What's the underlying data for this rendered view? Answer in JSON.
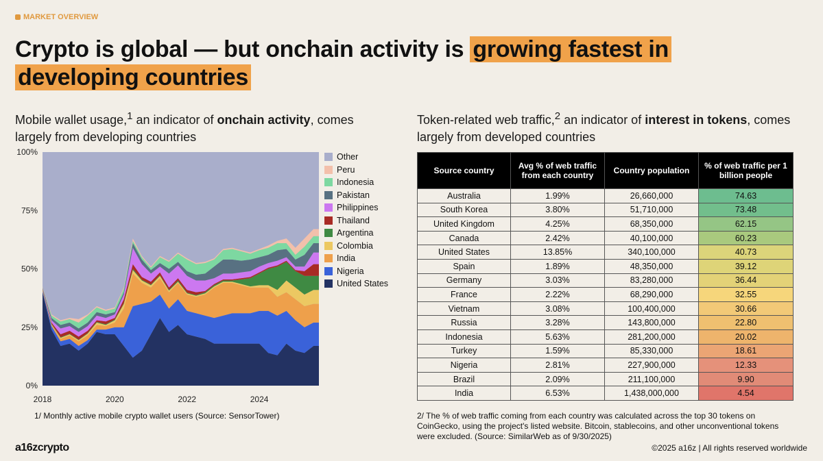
{
  "tag": "MARKET OVERVIEW",
  "title": {
    "part1": "Crypto is global — but onchain activity is ",
    "highlight1": "growing fastest in",
    "highlight2": "developing countries"
  },
  "left_subtitle": {
    "pre": "Mobile wallet usage,",
    "sup": "1",
    "mid": " an indicator of ",
    "bold": "onchain activity",
    "post": ", comes largely from developing countries"
  },
  "right_subtitle": {
    "pre": "Token-related web traffic,",
    "sup": "2",
    "mid": " an indicator of ",
    "bold": "interest in tokens",
    "post": ", comes largely from developed countries"
  },
  "chart_data": {
    "type": "area",
    "stacked": true,
    "percent_stacked": true,
    "ylim": [
      0,
      100
    ],
    "yticks": [
      "0%",
      "25%",
      "50%",
      "75%",
      "100%"
    ],
    "xticks": [
      "2018",
      "2020",
      "2022",
      "2024"
    ],
    "legend_position": "right",
    "x": [
      2018.0,
      2018.25,
      2018.5,
      2018.75,
      2019.0,
      2019.25,
      2019.5,
      2019.75,
      2020.0,
      2020.25,
      2020.5,
      2020.75,
      2021.0,
      2021.25,
      2021.5,
      2021.75,
      2022.0,
      2022.25,
      2022.5,
      2022.75,
      2023.0,
      2023.25,
      2023.5,
      2023.75,
      2024.0,
      2024.25,
      2024.5,
      2024.75,
      2025.0,
      2025.25,
      2025.5,
      2025.65
    ],
    "series": [
      {
        "name": "United States",
        "color": "#233262",
        "values": [
          40,
          24,
          17,
          18,
          15,
          18,
          23,
          22,
          22,
          17,
          12,
          15,
          22,
          29,
          23,
          26,
          22,
          21,
          20,
          18,
          18,
          18,
          18,
          18,
          18,
          14,
          13,
          18,
          15,
          14,
          17,
          17
        ]
      },
      {
        "name": "Nigeria",
        "color": "#3a62d9",
        "values": [
          0.5,
          1.5,
          2,
          2,
          2,
          1.5,
          1,
          2,
          3,
          8,
          22,
          20,
          14,
          10,
          10,
          11,
          10,
          10,
          10,
          11,
          12,
          13,
          13,
          13,
          14,
          18,
          17,
          14,
          13,
          11,
          10,
          10
        ]
      },
      {
        "name": "India",
        "color": "#eea04b",
        "values": [
          0.5,
          0.5,
          1,
          1.5,
          2,
          2,
          2,
          1.5,
          2,
          8,
          14,
          9,
          6,
          7,
          7,
          7,
          7,
          7,
          9,
          13,
          14,
          13,
          12,
          11,
          10,
          10,
          8,
          8,
          9,
          9,
          8,
          8
        ]
      },
      {
        "name": "Colombia",
        "color": "#ecc862",
        "values": [
          0.2,
          0.3,
          0.5,
          0.5,
          0.5,
          0.8,
          1,
          0.5,
          1,
          2,
          1.5,
          1,
          1,
          1,
          0.7,
          0.5,
          0.5,
          0.5,
          0.5,
          0.5,
          0.5,
          0.5,
          0.5,
          0.5,
          1,
          1,
          3,
          5,
          5,
          5,
          6,
          6
        ]
      },
      {
        "name": "Argentina",
        "color": "#3f8a43",
        "values": [
          0.2,
          0.2,
          0.2,
          0.2,
          0.2,
          0.2,
          0.3,
          0.3,
          0.3,
          0.3,
          0.5,
          0.3,
          0.3,
          0.3,
          0.3,
          0.5,
          0.3,
          0.3,
          0.5,
          0.5,
          0.5,
          0.5,
          2,
          3.5,
          5,
          7,
          10,
          8,
          7,
          8,
          6,
          6
        ]
      },
      {
        "name": "Thailand",
        "color": "#a82b24",
        "values": [
          0.2,
          0.5,
          1.3,
          1.3,
          1.3,
          1,
          0.7,
          1.2,
          0.7,
          1.7,
          2,
          1.2,
          1.2,
          1.2,
          1,
          1,
          1.2,
          1.2,
          0.5,
          0.5,
          0.5,
          0.5,
          0.5,
          0.5,
          0.5,
          0.5,
          0.5,
          0.5,
          0.5,
          2,
          5,
          5
        ]
      },
      {
        "name": "Philippines",
        "color": "#cc78f0",
        "values": [
          0.2,
          1,
          2.5,
          2,
          2,
          2,
          2,
          1.5,
          1.5,
          2,
          7,
          5.5,
          3.5,
          2.5,
          6,
          5.5,
          6,
          5,
          4.5,
          2.5,
          2.5,
          2.5,
          2.5,
          2.5,
          2.5,
          2,
          2,
          1.5,
          1.5,
          2,
          5,
          5
        ]
      },
      {
        "name": "Pakistan",
        "color": "#587182",
        "values": [
          0.2,
          1,
          1.5,
          1.5,
          1.5,
          1.5,
          1.5,
          1.5,
          1,
          1,
          2,
          2,
          1.5,
          1.5,
          2,
          1.5,
          2,
          2.5,
          3,
          5,
          6,
          6,
          5,
          5,
          4,
          3.5,
          4.5,
          3.5,
          3,
          5,
          4,
          4
        ]
      },
      {
        "name": "Indonesia",
        "color": "#7dd8a1",
        "values": [
          0.2,
          1,
          1.5,
          1.5,
          2.5,
          3,
          2,
          1.5,
          1.5,
          1.5,
          1,
          1,
          1,
          2.5,
          3,
          3.5,
          5,
          4.5,
          4.5,
          3,
          4,
          4.5,
          4,
          2.5,
          3,
          3,
          3,
          2.5,
          2,
          3.5,
          3,
          3
        ]
      },
      {
        "name": "Peru",
        "color": "#f3c0ab",
        "values": [
          0.2,
          0.5,
          0.5,
          0.5,
          1.5,
          0.5,
          0.5,
          0.5,
          0.5,
          0.5,
          1,
          0.5,
          0.5,
          0.5,
          0.5,
          0.5,
          0.5,
          0.5,
          0.5,
          0.5,
          0.5,
          0.5,
          0.5,
          0.5,
          0.5,
          1,
          1,
          2,
          3,
          3.5,
          3,
          3
        ]
      }
    ],
    "other": {
      "name": "Other",
      "color": "#a9aecb"
    }
  },
  "table": {
    "headers": [
      "Source country",
      "Avg % of web traffic from each country",
      "Country population",
      "% of web traffic per 1 billion people"
    ],
    "rows": [
      {
        "country": "Australia",
        "share": "1.99%",
        "population": "26,660,000",
        "per_billion": "74.63",
        "color": "#6dbd8f"
      },
      {
        "country": "South Korea",
        "share": "3.80%",
        "population": "51,710,000",
        "per_billion": "73.48",
        "color": "#72be8c"
      },
      {
        "country": "United Kingdom",
        "share": "4.25%",
        "population": "68,350,000",
        "per_billion": "62.15",
        "color": "#95c585"
      },
      {
        "country": "Canada",
        "share": "2.42%",
        "population": "40,100,000",
        "per_billion": "60.23",
        "color": "#a9c97e"
      },
      {
        "country": "United States",
        "share": "13.85%",
        "population": "340,100,000",
        "per_billion": "40.73",
        "color": "#dcd47a"
      },
      {
        "country": "Spain",
        "share": "1.89%",
        "population": "48,350,000",
        "per_billion": "39.12",
        "color": "#ded478"
      },
      {
        "country": "Germany",
        "share": "3.03%",
        "population": "83,280,000",
        "per_billion": "36.44",
        "color": "#e3d277"
      },
      {
        "country": "France",
        "share": "2.22%",
        "population": "68,290,000",
        "per_billion": "32.55",
        "color": "#f6d67b"
      },
      {
        "country": "Vietnam",
        "share": "3.08%",
        "population": "100,400,000",
        "per_billion": "30.66",
        "color": "#f2c977"
      },
      {
        "country": "Russia",
        "share": "3.28%",
        "population": "143,800,000",
        "per_billion": "22.80",
        "color": "#efc070"
      },
      {
        "country": "Indonesia",
        "share": "5.63%",
        "population": "281,200,000",
        "per_billion": "20.02",
        "color": "#eeb46c"
      },
      {
        "country": "Turkey",
        "share": "1.59%",
        "population": "85,330,000",
        "per_billion": "18.61",
        "color": "#eba574"
      },
      {
        "country": "Nigeria",
        "share": "2.81%",
        "population": "227,900,000",
        "per_billion": "12.33",
        "color": "#e5917a"
      },
      {
        "country": "Brazil",
        "share": "2.09%",
        "population": "211,100,000",
        "per_billion": "9.90",
        "color": "#e18b77"
      },
      {
        "country": "India",
        "share": "6.53%",
        "population": "1,438,000,000",
        "per_billion": "4.54",
        "color": "#e0756a"
      }
    ]
  },
  "footnotes": {
    "left": "1/ Monthly active mobile crypto wallet users (Source: SensorTower)",
    "right": "2/ The % of web traffic coming from each country was calculated across the top 30 tokens on CoinGecko, using the project's listed website. Bitcoin, stablecoins, and other unconventional tokens were excluded. (Source: SimilarWeb as of 9/30/2025)"
  },
  "logo": "a16zcrypto",
  "copyright": "©2025 a16z | All rights reserved worldwide"
}
